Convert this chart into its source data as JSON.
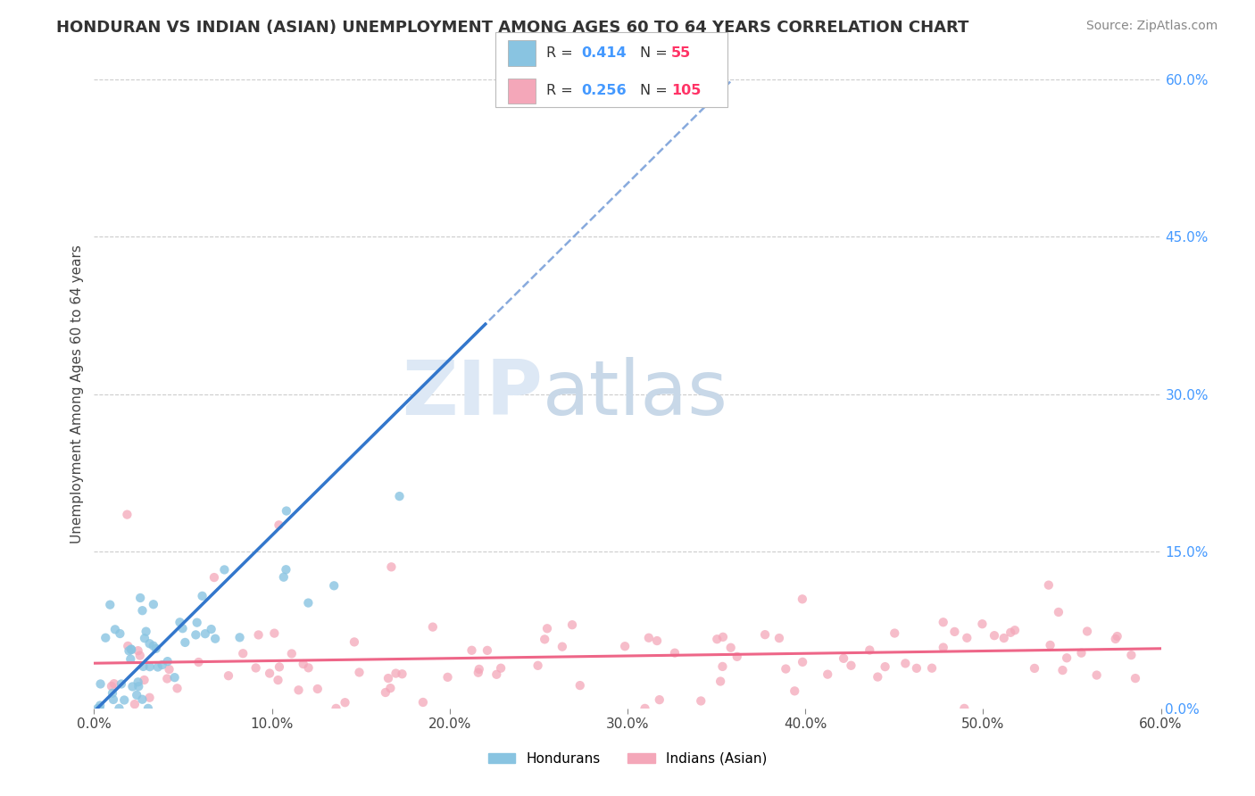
{
  "title": "HONDURAN VS INDIAN (ASIAN) UNEMPLOYMENT AMONG AGES 60 TO 64 YEARS CORRELATION CHART",
  "source": "Source: ZipAtlas.com",
  "ylabel": "Unemployment Among Ages 60 to 64 years",
  "xlim": [
    0.0,
    0.6
  ],
  "ylim": [
    0.0,
    0.6
  ],
  "xticks": [
    0.0,
    0.1,
    0.2,
    0.3,
    0.4,
    0.5,
    0.6
  ],
  "xticklabels": [
    "0.0%",
    "10.0%",
    "20.0%",
    "30.0%",
    "40.0%",
    "50.0%",
    "60.0%"
  ],
  "yticks_right": [
    0.0,
    0.15,
    0.3,
    0.45,
    0.6
  ],
  "yticklabels_right": [
    "0.0%",
    "15.0%",
    "30.0%",
    "45.0%",
    "60.0%"
  ],
  "honduran_color": "#89c4e1",
  "indian_color": "#f4a7b9",
  "honduran_R": 0.414,
  "honduran_N": 55,
  "indian_R": 0.256,
  "indian_N": 105,
  "watermark_zip": "ZIP",
  "watermark_atlas": "atlas",
  "background_color": "#ffffff",
  "grid_color": "#cccccc",
  "legend_R_color": "#4499ff",
  "legend_N_color": "#ff3366",
  "honduran_line_color": "#3377cc",
  "honduran_dashed_color": "#88aadd",
  "indian_line_color": "#ee6688",
  "title_fontsize": 13,
  "source_fontsize": 10,
  "tick_fontsize": 11
}
